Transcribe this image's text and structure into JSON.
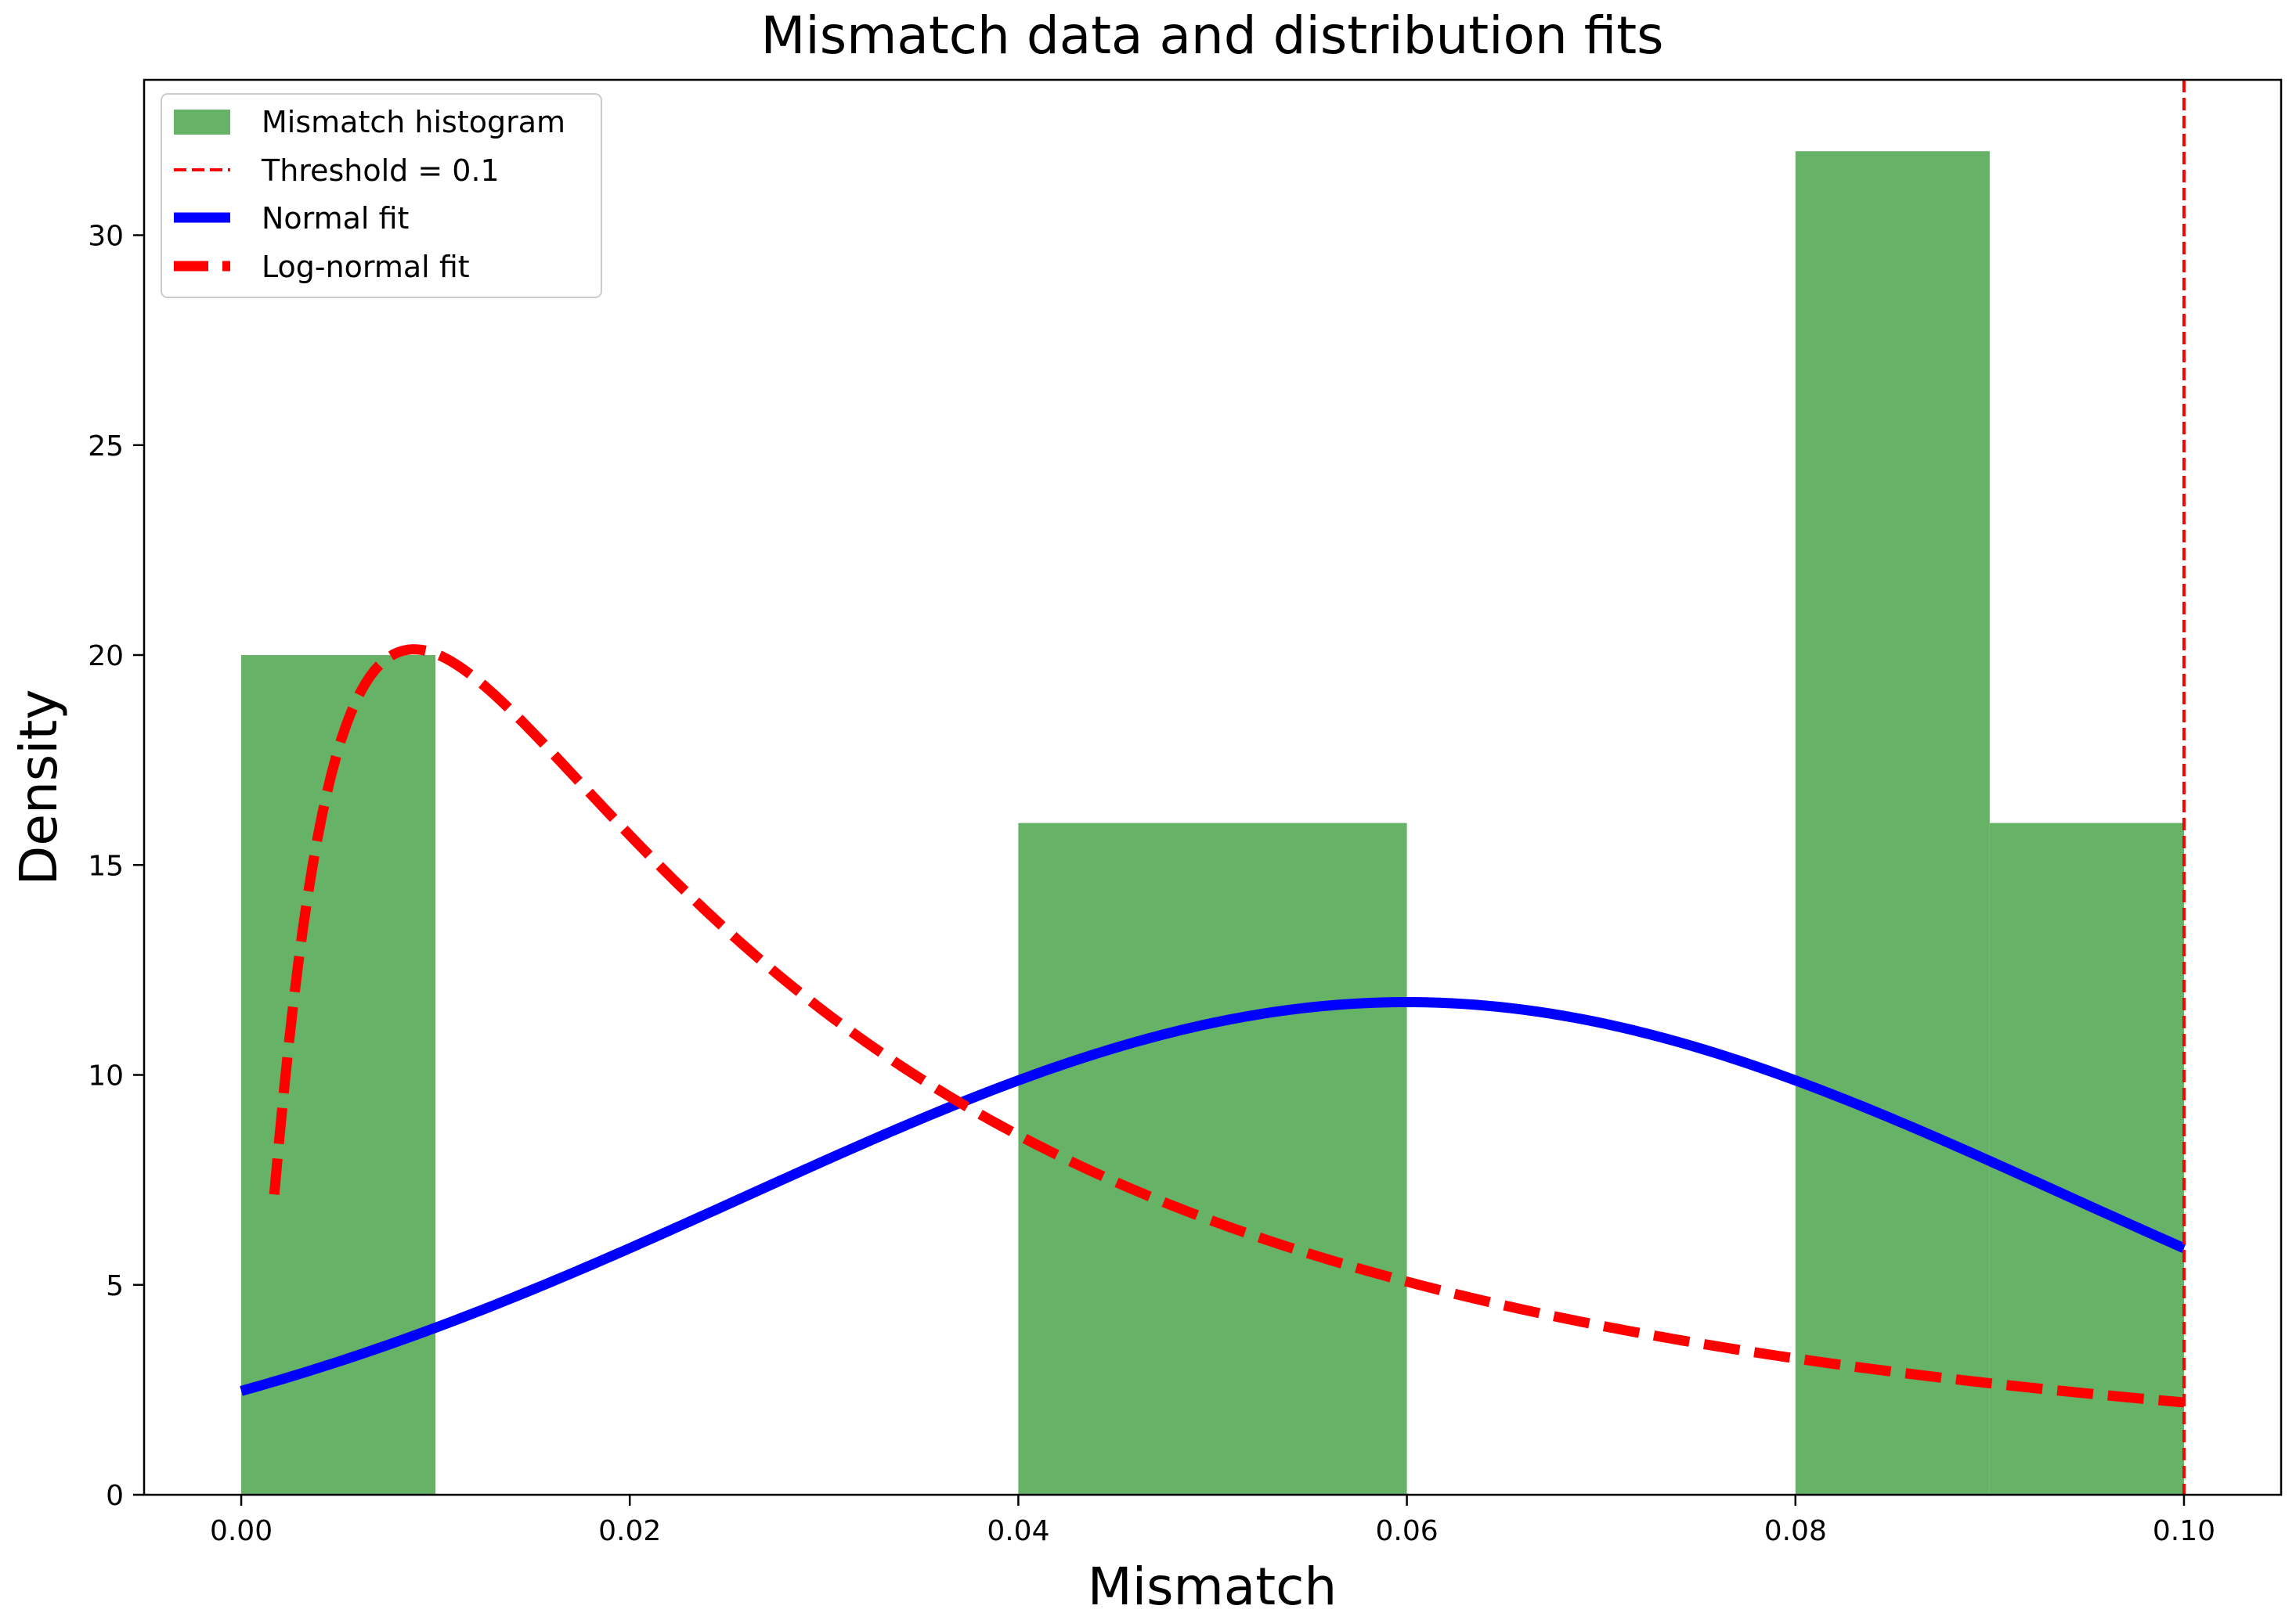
{
  "chart_data": {
    "type": "bar",
    "title": "Mismatch data and distribution fits",
    "xlabel": "Mismatch",
    "ylabel": "Density",
    "xlim": [
      -0.005,
      0.105
    ],
    "ylim": [
      0,
      33.7
    ],
    "xticks": [
      0.0,
      0.02,
      0.04,
      0.06,
      0.08,
      0.1
    ],
    "xtick_labels": [
      "0.00",
      "0.02",
      "0.04",
      "0.06",
      "0.08",
      "0.10"
    ],
    "yticks": [
      0,
      5,
      10,
      15,
      20,
      25,
      30
    ],
    "ytick_labels": [
      "0",
      "5",
      "10",
      "15",
      "20",
      "25",
      "30"
    ],
    "grid": false,
    "legend_position": "top-left",
    "legend": [
      {
        "label": "Mismatch histogram",
        "kind": "patch",
        "color": "#66b266"
      },
      {
        "label": "Threshold = 0.1",
        "kind": "dashed-thin",
        "color": "#ff0000"
      },
      {
        "label": "Normal fit",
        "kind": "solid-thick",
        "color": "#0000ff"
      },
      {
        "label": "Log-normal fit",
        "kind": "dashed-thick",
        "color": "#ff0000"
      }
    ],
    "histogram": {
      "name": "Mismatch histogram",
      "color": "#66b266",
      "bins": [
        {
          "x0": 0.0,
          "x1": 0.01,
          "density": 20
        },
        {
          "x0": 0.01,
          "x1": 0.02,
          "density": 0
        },
        {
          "x0": 0.02,
          "x1": 0.03,
          "density": 0
        },
        {
          "x0": 0.03,
          "x1": 0.04,
          "density": 0
        },
        {
          "x0": 0.04,
          "x1": 0.05,
          "density": 16
        },
        {
          "x0": 0.05,
          "x1": 0.06,
          "density": 16
        },
        {
          "x0": 0.06,
          "x1": 0.07,
          "density": 0
        },
        {
          "x0": 0.07,
          "x1": 0.08,
          "density": 0
        },
        {
          "x0": 0.08,
          "x1": 0.09,
          "density": 32
        },
        {
          "x0": 0.09,
          "x1": 0.1,
          "density": 16
        }
      ]
    },
    "threshold": {
      "name": "Threshold = 0.1",
      "x": 0.1,
      "color": "#ff0000"
    },
    "normal_fit": {
      "name": "Normal fit",
      "mean": 0.06,
      "std": 0.034,
      "color": "#0000ff"
    },
    "lognormal_fit": {
      "name": "Log-normal fit",
      "mu": -3.4,
      "sigma": 1.15,
      "x_start": 0.0017,
      "x_end": 0.1,
      "color": "#ff0000"
    }
  }
}
